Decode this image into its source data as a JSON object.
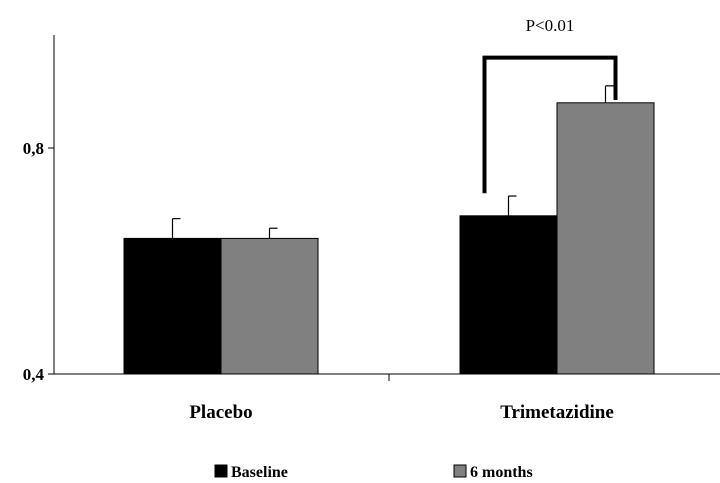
{
  "chart_data": {
    "type": "bar",
    "categories": [
      "Placebo",
      "Trimetazidine"
    ],
    "series": [
      {
        "name": "Baseline",
        "color": "#000000",
        "values": [
          0.64,
          0.68
        ],
        "errors": [
          0.035,
          0.035
        ]
      },
      {
        "name": "6 months",
        "color": "#808080",
        "values": [
          0.64,
          0.88
        ],
        "errors": [
          0.018,
          0.03
        ]
      }
    ],
    "ylim": [
      0.4,
      1.0
    ],
    "yticks": [
      0.4,
      0.8
    ],
    "ytick_labels": [
      "0,4",
      "0,8"
    ],
    "grid": false,
    "legend_position": "bottom",
    "title": "",
    "xlabel": "",
    "ylabel": "",
    "annotations": [
      {
        "text": "P<0.01",
        "category": "Trimetazidine",
        "bracket_y": 0.96
      }
    ]
  }
}
